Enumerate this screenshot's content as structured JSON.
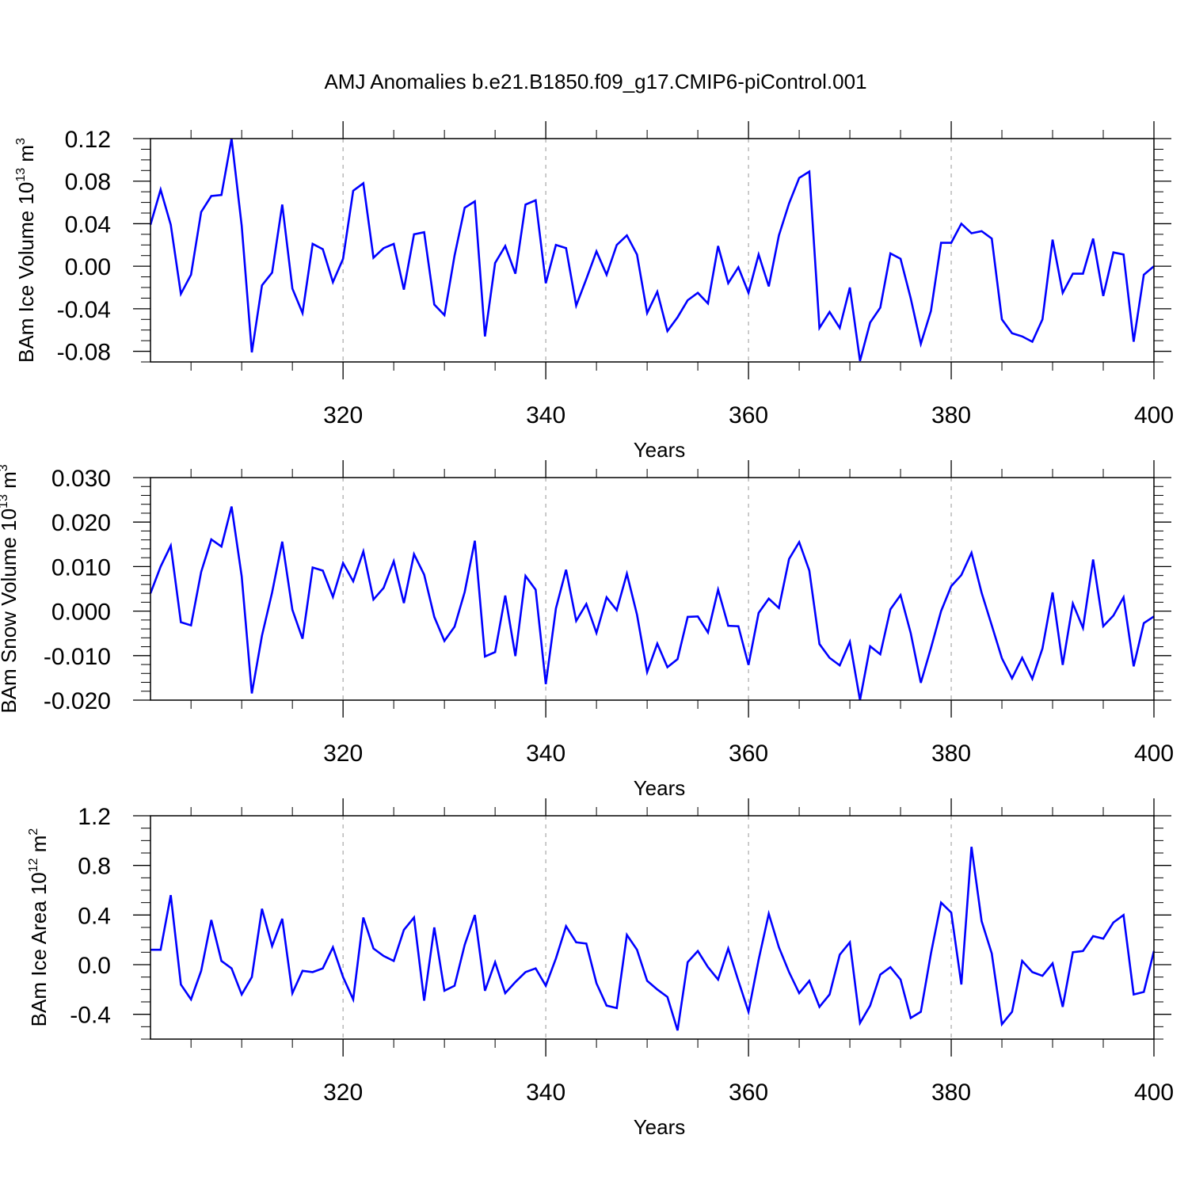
{
  "title": "AMJ Anomalies b.e21.B1850.f09_g17.CMIP6-piControl.001",
  "chart_data": [
    {
      "type": "line",
      "xlabel": "Years",
      "ylabel": "BAm Ice Volume 10",
      "ylabel_exp": "13",
      "ylabel_unit": " m",
      "ylabel_unit_exp": "3",
      "xlim": [
        301,
        400
      ],
      "ylim": [
        -0.09,
        0.12
      ],
      "xticks": [
        320,
        340,
        360,
        380,
        400
      ],
      "xtick_labels": [
        "320",
        "340",
        "360",
        "380",
        "400"
      ],
      "yticks": [
        -0.08,
        -0.04,
        0.0,
        0.04,
        0.08,
        0.12
      ],
      "ytick_labels": [
        "-0.08",
        "-0.04",
        "0.00",
        "0.04",
        "0.08",
        "0.12"
      ],
      "yminor_step": 0.01,
      "grid": "vertical dashed at major x ticks",
      "line_color": "#0000ff",
      "series": [
        {
          "x_start": 301,
          "values": [
            0.039,
            0.072,
            0.039,
            -0.026,
            -0.008,
            0.051,
            0.066,
            0.067,
            0.12,
            0.038,
            -0.081,
            -0.018,
            -0.006,
            0.058,
            -0.021,
            -0.044,
            0.021,
            0.016,
            -0.015,
            0.007,
            0.071,
            0.078,
            0.008,
            0.017,
            0.021,
            -0.022,
            0.03,
            0.032,
            -0.036,
            -0.046,
            0.01,
            0.055,
            0.061,
            -0.066,
            0.003,
            0.019,
            -0.007,
            0.058,
            0.062,
            -0.016,
            0.02,
            0.017,
            -0.037,
            -0.012,
            0.014,
            -0.008,
            0.02,
            0.029,
            0.011,
            -0.044,
            -0.024,
            -0.061,
            -0.048,
            -0.032,
            -0.025,
            -0.035,
            0.019,
            -0.016,
            -0.001,
            -0.025,
            0.011,
            -0.019,
            0.029,
            0.059,
            0.083,
            0.089,
            -0.058,
            -0.043,
            -0.058,
            -0.02,
            -0.089,
            -0.053,
            -0.039,
            0.012,
            0.007,
            -0.03,
            -0.073,
            -0.042,
            0.022,
            0.022,
            0.04,
            0.031,
            0.033,
            0.026,
            -0.05,
            -0.063,
            -0.066,
            -0.071,
            -0.05,
            0.025,
            -0.025,
            -0.007,
            -0.007,
            0.026,
            -0.028,
            0.013,
            0.011,
            -0.071,
            -0.008,
            0.0
          ]
        }
      ]
    },
    {
      "type": "line",
      "xlabel": "Years",
      "ylabel": "BAm Snow Volume 10",
      "ylabel_exp": "13",
      "ylabel_unit": " m",
      "ylabel_unit_exp": "3",
      "xlim": [
        301,
        400
      ],
      "ylim": [
        -0.02,
        0.03
      ],
      "xticks": [
        320,
        340,
        360,
        380,
        400
      ],
      "xtick_labels": [
        "320",
        "340",
        "360",
        "380",
        "400"
      ],
      "yticks": [
        -0.02,
        -0.01,
        0.0,
        0.01,
        0.02,
        0.03
      ],
      "ytick_labels": [
        "-0.020",
        "-0.010",
        "0.000",
        "0.010",
        "0.020",
        "0.030"
      ],
      "yminor_step": 0.002,
      "grid": "vertical dashed at major x ticks",
      "line_color": "#0000ff",
      "series": [
        {
          "x_start": 301,
          "values": [
            0.004,
            0.01,
            0.0147,
            -0.0025,
            -0.0032,
            0.0088,
            0.0161,
            0.0145,
            0.0235,
            0.0078,
            -0.0185,
            -0.0055,
            0.0042,
            0.0156,
            0.0003,
            -0.0062,
            0.0098,
            0.0091,
            0.0032,
            0.0108,
            0.0067,
            0.0134,
            0.0026,
            0.0052,
            0.0112,
            0.0018,
            0.0128,
            0.0082,
            -0.0013,
            -0.0067,
            -0.0035,
            0.0043,
            0.0158,
            -0.0102,
            -0.0092,
            0.0035,
            -0.0101,
            0.0079,
            0.0048,
            -0.0164,
            0.0006,
            0.0093,
            -0.0022,
            0.0016,
            -0.0049,
            0.0031,
            0.0002,
            0.0084,
            -0.0008,
            -0.0137,
            -0.0073,
            -0.0126,
            -0.0108,
            -0.0013,
            -0.0012,
            -0.0048,
            0.0048,
            -0.0033,
            -0.0034,
            -0.0121,
            -0.0004,
            0.0028,
            0.0007,
            0.0117,
            0.0155,
            0.0091,
            -0.0074,
            -0.0105,
            -0.0122,
            -0.0069,
            -0.02,
            -0.0079,
            -0.0097,
            0.0004,
            0.0036,
            -0.0049,
            -0.0161,
            -0.0083,
            0.0,
            0.0056,
            0.0081,
            0.0131,
            0.0041,
            -0.0032,
            -0.0106,
            -0.0151,
            -0.0105,
            -0.0152,
            -0.0084,
            0.0042,
            -0.0121,
            0.0017,
            -0.0038,
            0.0116,
            -0.0034,
            -0.001,
            0.0031,
            -0.0124,
            -0.0027,
            -0.0012
          ]
        }
      ]
    },
    {
      "type": "line",
      "xlabel": "Years",
      "ylabel": "BAm Ice Area 10",
      "ylabel_exp": "12",
      "ylabel_unit": " m",
      "ylabel_unit_exp": "2",
      "xlim": [
        301,
        400
      ],
      "ylim": [
        -0.6,
        1.2
      ],
      "xticks": [
        320,
        340,
        360,
        380,
        400
      ],
      "xtick_labels": [
        "320",
        "340",
        "360",
        "380",
        "400"
      ],
      "yticks": [
        -0.4,
        0.0,
        0.4,
        0.8,
        1.2
      ],
      "ytick_labels": [
        "-0.4",
        "0.0",
        "0.4",
        "0.8",
        "1.2"
      ],
      "yminor_step": 0.1,
      "grid": "vertical dashed at major x ticks",
      "line_color": "#0000ff",
      "series": [
        {
          "x_start": 301,
          "values": [
            0.12,
            0.12,
            0.56,
            -0.16,
            -0.28,
            -0.05,
            0.36,
            0.03,
            -0.03,
            -0.24,
            -0.1,
            0.45,
            0.15,
            0.37,
            -0.23,
            -0.05,
            -0.06,
            -0.03,
            0.14,
            -0.1,
            -0.28,
            0.38,
            0.13,
            0.07,
            0.03,
            0.28,
            0.38,
            -0.29,
            0.3,
            -0.21,
            -0.17,
            0.16,
            0.4,
            -0.21,
            0.02,
            -0.23,
            -0.14,
            -0.06,
            -0.03,
            -0.17,
            0.05,
            0.31,
            0.18,
            0.17,
            -0.15,
            -0.33,
            -0.35,
            0.24,
            0.12,
            -0.13,
            -0.2,
            -0.26,
            -0.53,
            0.02,
            0.11,
            -0.02,
            -0.12,
            0.13,
            -0.13,
            -0.38,
            0.04,
            0.41,
            0.14,
            -0.06,
            -0.23,
            -0.13,
            -0.34,
            -0.24,
            0.08,
            0.18,
            -0.47,
            -0.33,
            -0.08,
            -0.02,
            -0.12,
            -0.43,
            -0.38,
            0.09,
            0.5,
            0.42,
            -0.16,
            0.95,
            0.35,
            0.09,
            -0.48,
            -0.38,
            0.03,
            -0.06,
            -0.09,
            0.01,
            -0.34,
            0.1,
            0.11,
            0.23,
            0.21,
            0.34,
            0.4,
            -0.24,
            -0.22,
            0.11
          ]
        }
      ]
    }
  ]
}
